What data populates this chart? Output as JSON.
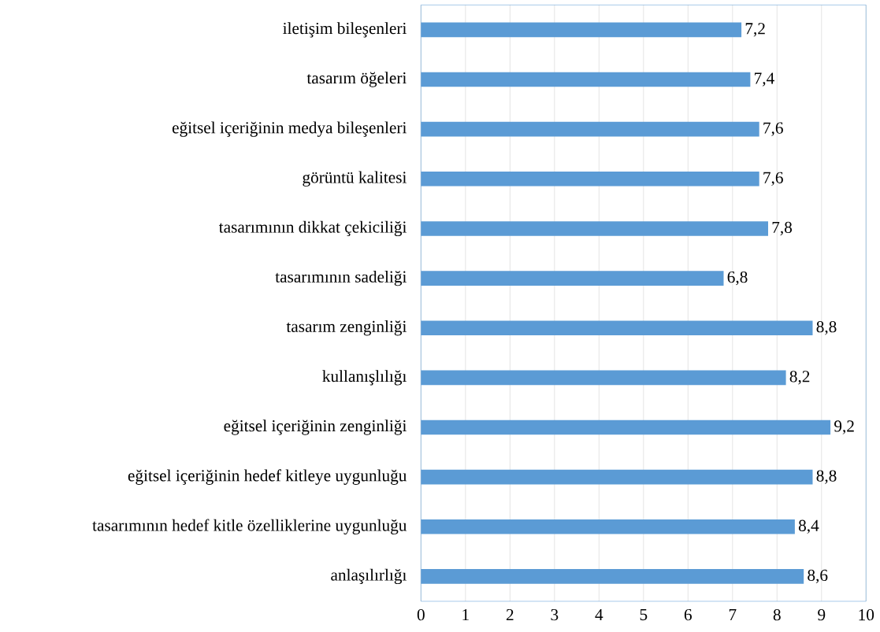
{
  "chart_data": {
    "type": "bar",
    "orientation": "horizontal",
    "categories": [
      "iletişim bileşenleri",
      "tasarım öğeleri",
      "eğitsel içeriğinin medya bileşenleri",
      "görüntü kalitesi",
      "tasarımının dikkat çekiciliği",
      "tasarımının sadeliği",
      "tasarım zenginliği",
      "kullanışlılığı",
      "eğitsel içeriğinin zenginliği",
      "eğitsel içeriğinin hedef kitleye uygunluğu",
      "tasarımının hedef kitle özelliklerine uygunluğu",
      "anlaşılırlığı"
    ],
    "values": [
      7.2,
      7.4,
      7.6,
      7.6,
      7.8,
      6.8,
      8.8,
      8.2,
      9.2,
      8.8,
      8.4,
      8.6
    ],
    "value_labels": [
      "7,2",
      "7,4",
      "7,6",
      "7,6",
      "7,8",
      "6,8",
      "8,8",
      "8,2",
      "9,2",
      "8,8",
      "8,4",
      "8,6"
    ],
    "color": "#5b9bd5",
    "xlim": [
      0,
      10
    ],
    "xticks": [
      0,
      1,
      2,
      3,
      4,
      5,
      6,
      7,
      8,
      9,
      10
    ],
    "grid": "x"
  }
}
